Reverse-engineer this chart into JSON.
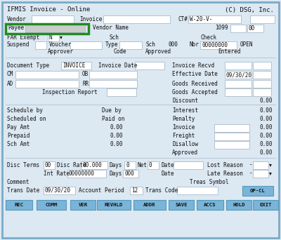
{
  "title": "IFMIS Invoice - Online",
  "copyright": "(C) DSG, Inc.",
  "bg_color": "#dce8f2",
  "border_color": "#7aaac8",
  "field_bg": "#ffffff",
  "field_border": "#aabbcc",
  "text_color": "#111111",
  "button_color": "#7ab4d8",
  "button_border": "#5599bb",
  "highlight_color": "#228B22",
  "font_size": 5.5,
  "title_font_size": 6.5,
  "button_font_size": 5.2,
  "buttons": [
    "REC",
    "COMM",
    "VER",
    "REVHLD",
    "ADDR",
    "SAVE",
    "ACCS",
    "HOLD",
    "EXIT"
  ]
}
